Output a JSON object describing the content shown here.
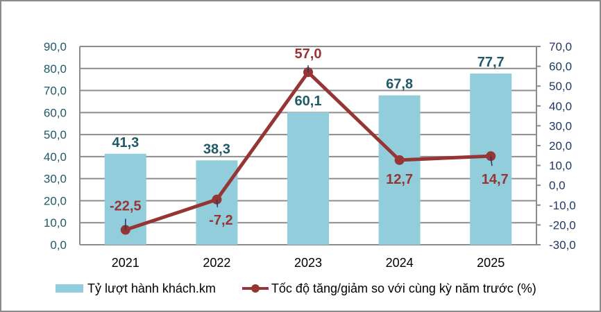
{
  "chart_data": {
    "type": "bar+line",
    "categories": [
      "2021",
      "2022",
      "2023",
      "2024",
      "2025"
    ],
    "series": [
      {
        "name": "Tỷ lượt hành khách.km",
        "type": "bar",
        "axis": "left",
        "color": "#92cddc",
        "values": [
          41.3,
          38.3,
          60.1,
          67.8,
          77.7
        ],
        "labels": [
          "41,3",
          "38,3",
          "60,1",
          "67,8",
          "77,7"
        ]
      },
      {
        "name": "Tốc độ tăng/giảm so với cùng kỳ năm trước (%)",
        "type": "line",
        "axis": "right",
        "color": "#963634",
        "values": [
          -22.5,
          -7.2,
          57.0,
          12.7,
          14.7
        ],
        "labels": [
          "-22,5",
          "-7,2",
          "57,0",
          "12,7",
          "14,7"
        ]
      }
    ],
    "y_left": {
      "range": [
        0,
        90
      ],
      "ticks": [
        "0,0",
        "10,0",
        "20,0",
        "30,0",
        "40,0",
        "50,0",
        "60,0",
        "70,0",
        "80,0",
        "90,0"
      ]
    },
    "y_right": {
      "range": [
        -30,
        70
      ],
      "ticks": [
        "-30,0",
        "-20,0",
        "-10,0",
        "0,0",
        "10,0",
        "20,0",
        "30,0",
        "40,0",
        "50,0",
        "60,0",
        "70,0"
      ]
    },
    "title": "",
    "xlabel": "",
    "ylabel": "",
    "grid": true,
    "legend_position": "bottom"
  },
  "legend": {
    "bar_label": "Tỷ lượt hành khách.km",
    "line_label": "Tốc độ tăng/giảm so với cùng kỳ năm trước (%)"
  }
}
